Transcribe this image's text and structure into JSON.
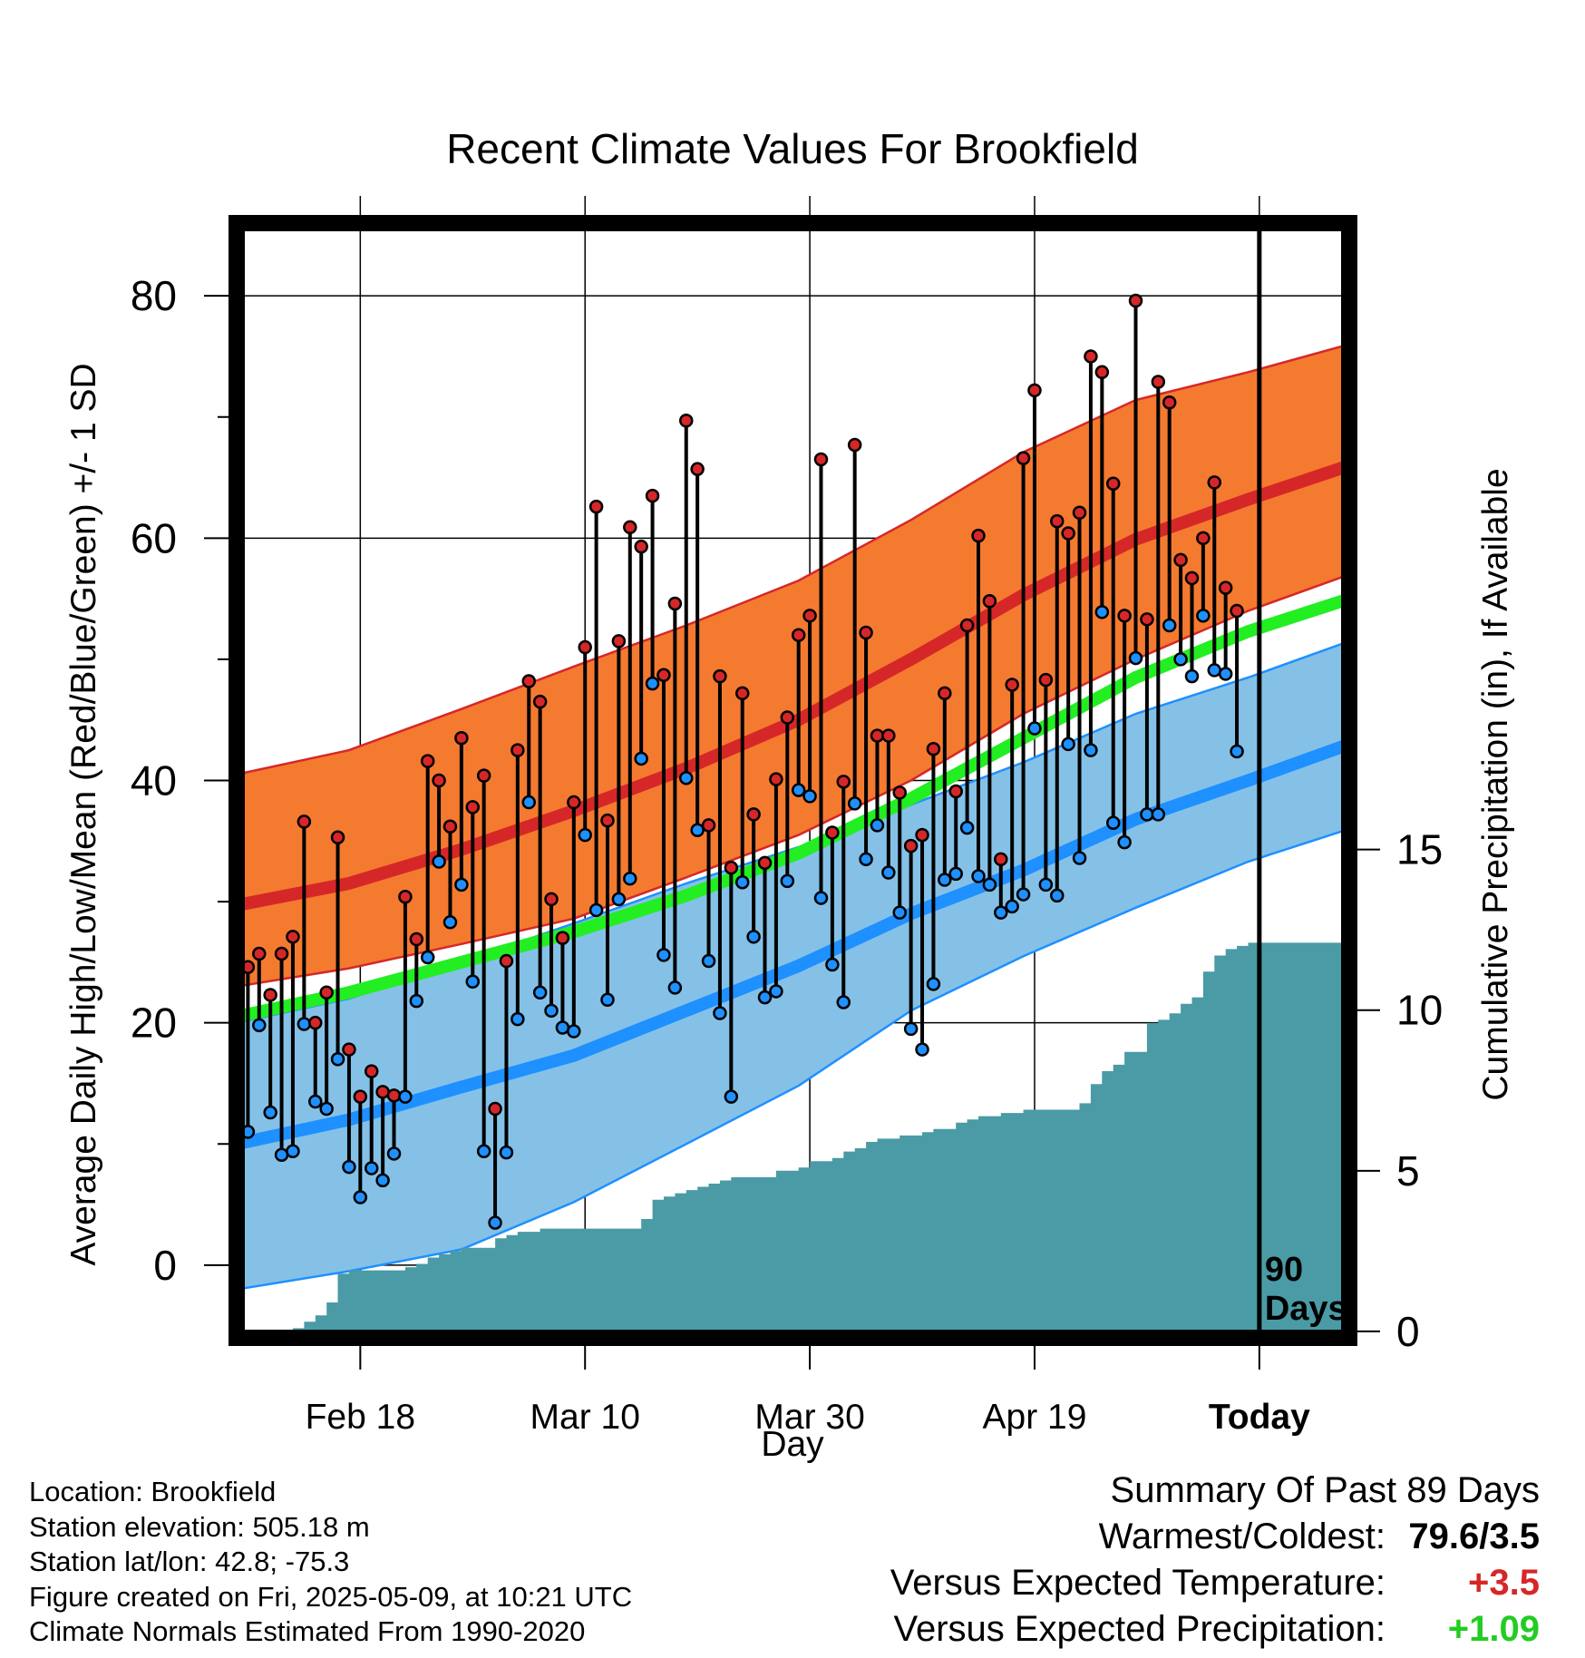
{
  "title": "Recent Climate Values For Brookfield",
  "y_axis_label": "Average Daily High/Low/Mean (Red/Blue/Green) +/- 1 SD",
  "y2_axis_label": "Cumulative Precipitation (in), If Available",
  "x_axis_label": "Day",
  "today_label_1": "90",
  "today_label_2": "Days",
  "footer": {
    "location": "Location: Brookfield",
    "elevation": "Station elevation: 505.18 m",
    "latlon": "Station lat/lon: 42.8; -75.3",
    "created": "Figure created on Fri, 2025-05-09, at 10:21 UTC",
    "normals": "Climate Normals Estimated From 1990-2020"
  },
  "summary": {
    "heading": "Summary Of Past 89 Days",
    "warmest_coldest_label": "Warmest/Coldest:",
    "warmest_coldest_value": "79.6/3.5",
    "temp_label": "Versus Expected Temperature:",
    "temp_value": "+3.5",
    "precip_label": "Versus Expected Precipitation:",
    "precip_value": "+1.09"
  },
  "colors": {
    "high_band": "#f47a30",
    "high_mean": "#d62728",
    "low_band": "#85c1e7",
    "low_mean": "#1e90ff",
    "mean_temp": "#22ee22",
    "overlap": "#8b1010",
    "precip": "#4a9ba5"
  },
  "chart_data": {
    "type": "line",
    "x_unit": "day index (1 = Feb 8, 90 = today May 8)",
    "x_range": [
      0,
      99
    ],
    "ylim": [
      -6,
      86
    ],
    "y2lim": [
      -0.2,
      34.5
    ],
    "x_ticks": [
      {
        "x": 11,
        "label": "Feb 18"
      },
      {
        "x": 31,
        "label": "Mar 10"
      },
      {
        "x": 51,
        "label": "Mar 30"
      },
      {
        "x": 71,
        "label": "Apr 19"
      },
      {
        "x": 91,
        "label": "Today"
      }
    ],
    "y_ticks": [
      0,
      20,
      40,
      60,
      80
    ],
    "y2_ticks": [
      0,
      5,
      10,
      15
    ],
    "grid": true,
    "normals_x": [
      0,
      10,
      20,
      30,
      40,
      50,
      60,
      70,
      80,
      90,
      99
    ],
    "normal_high_mean": [
      29.7,
      31.5,
      34.3,
      37.5,
      41.0,
      45.0,
      50.0,
      55.3,
      59.9,
      63.2,
      66.0
    ],
    "normal_high_sd_upper": [
      40.5,
      42.5,
      45.9,
      49.4,
      52.8,
      56.5,
      61.5,
      67.1,
      71.4,
      73.7,
      76.0
    ],
    "normal_high_sd_lower": [
      23.0,
      24.5,
      26.5,
      28.6,
      32.0,
      35.5,
      40.0,
      45.5,
      50.0,
      54.0,
      57.0
    ],
    "normal_mean": [
      20.5,
      22.5,
      25.0,
      27.5,
      30.5,
      34.0,
      38.5,
      43.5,
      48.5,
      52.3,
      55.0
    ],
    "normal_low_mean": [
      10.0,
      12.0,
      14.7,
      17.3,
      21.0,
      24.7,
      29.0,
      32.6,
      36.8,
      40.0,
      43.0
    ],
    "normal_low_sd_upper": [
      20.0,
      22.0,
      25.0,
      28.2,
      31.5,
      34.5,
      38.0,
      41.5,
      45.5,
      48.5,
      51.5
    ],
    "normal_low_sd_lower": [
      -2.0,
      -0.5,
      1.3,
      5.2,
      10.0,
      14.8,
      21.0,
      25.5,
      29.5,
      33.3,
      36.0
    ],
    "observed": {
      "x": [
        1,
        2,
        3,
        4,
        5,
        6,
        7,
        8,
        9,
        10,
        11,
        12,
        13,
        14,
        15,
        16,
        17,
        18,
        19,
        20,
        21,
        22,
        23,
        24,
        25,
        26,
        27,
        28,
        29,
        30,
        31,
        32,
        33,
        34,
        35,
        36,
        37,
        38,
        39,
        40,
        41,
        42,
        43,
        44,
        45,
        46,
        47,
        48,
        49,
        50,
        51,
        52,
        53,
        54,
        55,
        56,
        57,
        58,
        59,
        60,
        61,
        62,
        63,
        64,
        65,
        66,
        67,
        68,
        69,
        70,
        71,
        72,
        73,
        74,
        75,
        76,
        77,
        78,
        79,
        80,
        81,
        82,
        83,
        84,
        85,
        86,
        87,
        88,
        89
      ],
      "high": [
        24.6,
        25.7,
        22.3,
        25.7,
        27.1,
        36.6,
        20.0,
        22.5,
        35.3,
        17.8,
        13.9,
        16.0,
        14.3,
        14.0,
        30.4,
        26.9,
        41.6,
        40.0,
        36.2,
        43.5,
        37.8,
        40.4,
        12.9,
        25.1,
        42.5,
        48.2,
        46.5,
        30.2,
        27.0,
        38.2,
        51.0,
        62.6,
        36.7,
        51.5,
        60.9,
        59.3,
        63.5,
        48.7,
        54.6,
        69.7,
        65.7,
        36.3,
        48.6,
        32.8,
        47.2,
        37.2,
        33.2,
        40.1,
        45.2,
        52.0,
        53.6,
        66.5,
        35.7,
        39.9,
        67.7,
        52.2,
        43.7,
        43.7,
        39.0,
        34.6,
        35.5,
        42.6,
        47.2,
        39.1,
        52.8,
        60.2,
        54.8,
        33.5,
        47.9,
        66.6,
        72.2,
        48.3,
        61.4,
        60.4,
        62.1,
        75.0,
        73.7,
        64.5,
        53.6,
        79.6,
        53.3,
        72.9,
        71.2,
        58.2,
        56.7,
        60.0,
        64.6,
        55.9,
        54.0
      ],
      "low": [
        11.0,
        19.8,
        12.6,
        9.1,
        9.4,
        19.9,
        13.5,
        12.9,
        17.0,
        8.1,
        5.6,
        8.0,
        7.0,
        9.2,
        13.9,
        21.8,
        25.4,
        33.3,
        28.3,
        31.4,
        23.4,
        9.4,
        3.5,
        9.3,
        20.3,
        38.2,
        22.5,
        21.0,
        19.6,
        19.3,
        35.5,
        29.3,
        21.9,
        30.2,
        31.9,
        41.8,
        48.0,
        25.6,
        22.9,
        40.2,
        35.9,
        25.1,
        20.8,
        13.9,
        31.6,
        27.1,
        22.1,
        22.6,
        31.7,
        39.2,
        38.7,
        30.3,
        24.8,
        21.7,
        38.1,
        33.5,
        36.3,
        32.4,
        29.1,
        19.5,
        17.8,
        23.2,
        31.8,
        32.3,
        36.1,
        32.1,
        31.4,
        29.1,
        29.6,
        30.6,
        44.3,
        31.4,
        30.5,
        43.0,
        33.6,
        42.5,
        53.9,
        36.5,
        34.9,
        50.1,
        37.2,
        37.2,
        52.8,
        50.0,
        48.6,
        53.6,
        49.1,
        48.8,
        42.4
      ]
    },
    "precip": {
      "x": [
        4,
        5,
        6,
        7,
        8,
        9,
        10,
        11,
        15,
        16,
        17,
        18,
        19,
        20,
        21,
        22,
        23,
        24,
        25,
        26,
        27,
        28,
        29,
        30,
        36,
        37,
        38,
        39,
        40,
        41,
        42,
        43,
        44,
        45,
        48,
        49,
        50,
        51,
        52,
        53,
        54,
        55,
        56,
        57,
        58,
        59,
        60,
        61,
        62,
        63,
        64,
        65,
        66,
        67,
        68,
        69,
        70,
        71,
        75,
        76,
        77,
        78,
        79,
        80,
        81,
        82,
        83,
        84,
        85,
        86,
        87,
        88,
        89,
        90,
        91,
        99
      ],
      "y": [
        0.0,
        0.1,
        0.3,
        0.5,
        0.9,
        1.8,
        1.9,
        1.9,
        2.0,
        2.1,
        2.3,
        2.4,
        2.5,
        2.6,
        2.6,
        2.6,
        2.9,
        3.0,
        3.1,
        3.1,
        3.2,
        3.2,
        3.2,
        3.2,
        3.5,
        4.1,
        4.2,
        4.3,
        4.4,
        4.5,
        4.6,
        4.7,
        4.8,
        4.8,
        5.0,
        5.0,
        5.1,
        5.3,
        5.3,
        5.4,
        5.6,
        5.7,
        5.9,
        6.0,
        6.0,
        6.1,
        6.1,
        6.2,
        6.3,
        6.3,
        6.5,
        6.6,
        6.7,
        6.7,
        6.8,
        6.8,
        6.9,
        6.9,
        7.1,
        7.7,
        8.1,
        8.3,
        8.7,
        8.7,
        9.6,
        9.7,
        9.9,
        10.2,
        10.4,
        11.2,
        11.7,
        11.9,
        12.0,
        12.1,
        12.1,
        12.1
      ]
    }
  }
}
